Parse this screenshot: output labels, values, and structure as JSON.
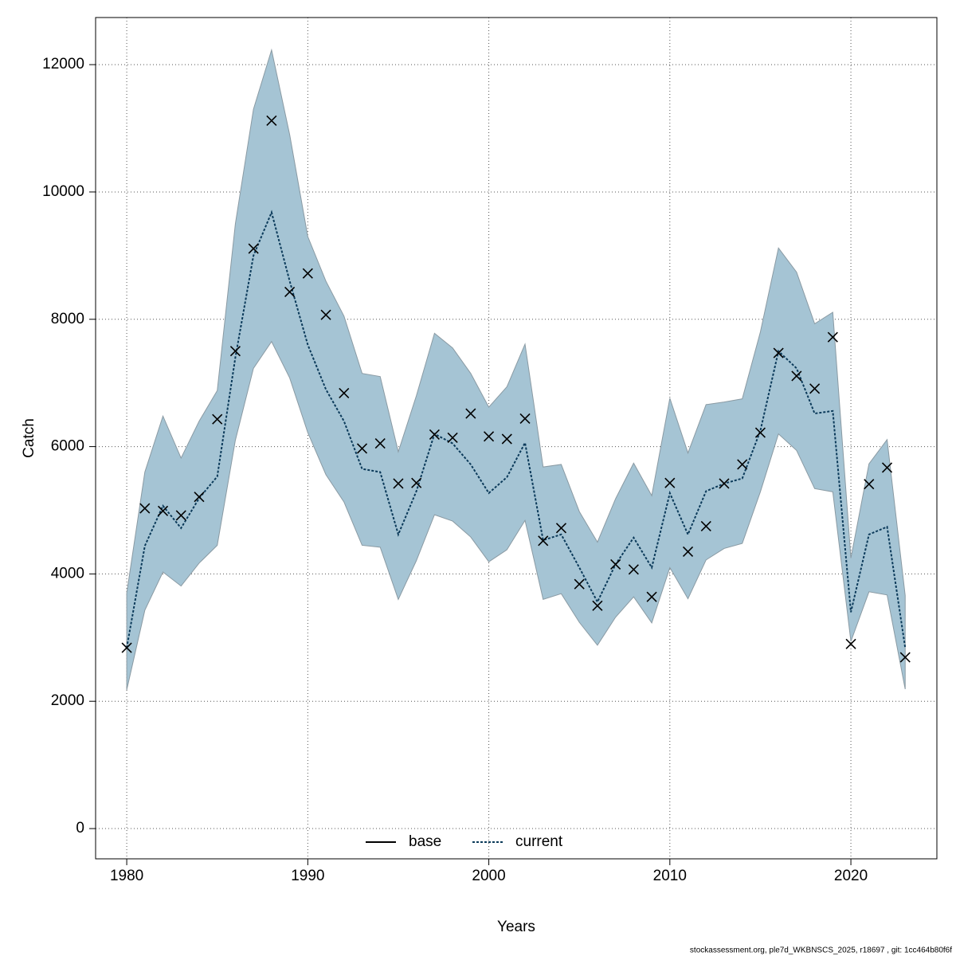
{
  "chart_data": {
    "type": "line",
    "x_label": "Years",
    "y_label": "Catch",
    "footer": "stockassessment.org, ple7d_WKBNSCS_2025, r18697 , git: 1cc464b80f6f",
    "x": [
      1980,
      1981,
      1982,
      1983,
      1984,
      1985,
      1986,
      1987,
      1988,
      1989,
      1990,
      1991,
      1992,
      1993,
      1994,
      1995,
      1996,
      1997,
      1998,
      1999,
      2000,
      2001,
      2002,
      2003,
      2004,
      2005,
      2006,
      2007,
      2008,
      2009,
      2010,
      2011,
      2012,
      2013,
      2014,
      2015,
      2016,
      2017,
      2018,
      2019,
      2020,
      2021,
      2022,
      2023
    ],
    "series": [
      {
        "name": "current",
        "color": "#0b3a5a",
        "dash": "dotted",
        "values": [
          2840,
          4440,
          5070,
          4720,
          5190,
          5530,
          7400,
          9000,
          9680,
          8600,
          7600,
          6900,
          6400,
          5650,
          5600,
          4620,
          5300,
          6200,
          6050,
          5720,
          5270,
          5520,
          6060,
          4530,
          4620,
          4100,
          3560,
          4150,
          4570,
          4100,
          5270,
          4620,
          5300,
          5420,
          5500,
          6250,
          7500,
          7230,
          6520,
          6560,
          3400,
          4620,
          4740,
          2840
        ],
        "upper": [
          3700,
          5600,
          6480,
          5820,
          6400,
          6880,
          9500,
          11300,
          12230,
          10900,
          9300,
          8600,
          8050,
          7150,
          7100,
          5920,
          6800,
          7780,
          7550,
          7150,
          6620,
          6940,
          7610,
          5680,
          5720,
          4980,
          4500,
          5180,
          5740,
          5230,
          6760,
          5900,
          6660,
          6700,
          6750,
          7800,
          9120,
          8740,
          7930,
          8110,
          4250,
          5730,
          6110,
          3660
        ],
        "lower": [
          2180,
          3430,
          4030,
          3810,
          4170,
          4450,
          6100,
          7230,
          7650,
          7080,
          6220,
          5560,
          5130,
          4450,
          4420,
          3600,
          4210,
          4930,
          4830,
          4580,
          4190,
          4380,
          4840,
          3600,
          3690,
          3240,
          2880,
          3320,
          3640,
          3230,
          4100,
          3610,
          4220,
          4400,
          4480,
          5290,
          6200,
          5940,
          5340,
          5290,
          2940,
          3720,
          3670,
          2190
        ],
        "band_color": "#a5c4d4"
      },
      {
        "color": "#000000",
        "marker": "x",
        "values": [
          2840,
          5030,
          4990,
          4920,
          5210,
          6430,
          7500,
          9110,
          11120,
          8430,
          8720,
          8070,
          6840,
          5970,
          6050,
          5420,
          5430,
          6190,
          6140,
          6520,
          6160,
          6120,
          6440,
          4520,
          4720,
          3840,
          3500,
          4150,
          4070,
          3640,
          5430,
          4350,
          4750,
          5420,
          5720,
          6220,
          7470,
          7110,
          6910,
          7720,
          2900,
          5410,
          5670,
          2690
        ]
      }
    ],
    "legend": [
      {
        "name": "base",
        "color": "#000000",
        "dash": "solid"
      },
      {
        "name": "current",
        "color": "#0b3a5a",
        "dash": "dotted"
      }
    ],
    "legend_position": "bottom",
    "xlim": [
      1978.28,
      2024.75
    ],
    "xticks": [
      1980,
      1990,
      2000,
      2010,
      2020
    ],
    "ylim": [
      -475,
      12740
    ],
    "yticks": [
      0,
      2000,
      4000,
      6000,
      8000,
      10000,
      12000
    ],
    "grid": true
  }
}
